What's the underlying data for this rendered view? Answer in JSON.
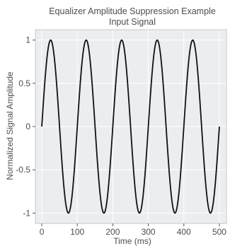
{
  "chart_data": {
    "type": "line",
    "title": "Equalizer Amplitude Suppression Example",
    "subtitle": "Input Signal",
    "xlabel": "Time (ms)",
    "ylabel": "Normalized Signal Amplitude",
    "xlim": [
      -18,
      520
    ],
    "ylim": [
      -1.12,
      1.12
    ],
    "x_ticks": [
      0,
      100,
      200,
      300,
      400,
      500
    ],
    "x_tick_labels": [
      "0",
      "100",
      "200",
      "300",
      "400",
      "500"
    ],
    "y_ticks": [
      1,
      0.5,
      0,
      -0.5,
      -1
    ],
    "y_tick_labels": [
      "1",
      "0.5",
      "0",
      "-0.5",
      "-1"
    ],
    "grid": true,
    "series": [
      {
        "function": "sine",
        "amplitude": 1,
        "period_ms": 100,
        "x_start": 0,
        "x_end": 500,
        "color": "#111111"
      }
    ],
    "colors": {
      "plot_background": "#ebedf0",
      "grid": "#ffffff",
      "line": "#111111",
      "axis_frame": "#c8c8c8"
    }
  }
}
